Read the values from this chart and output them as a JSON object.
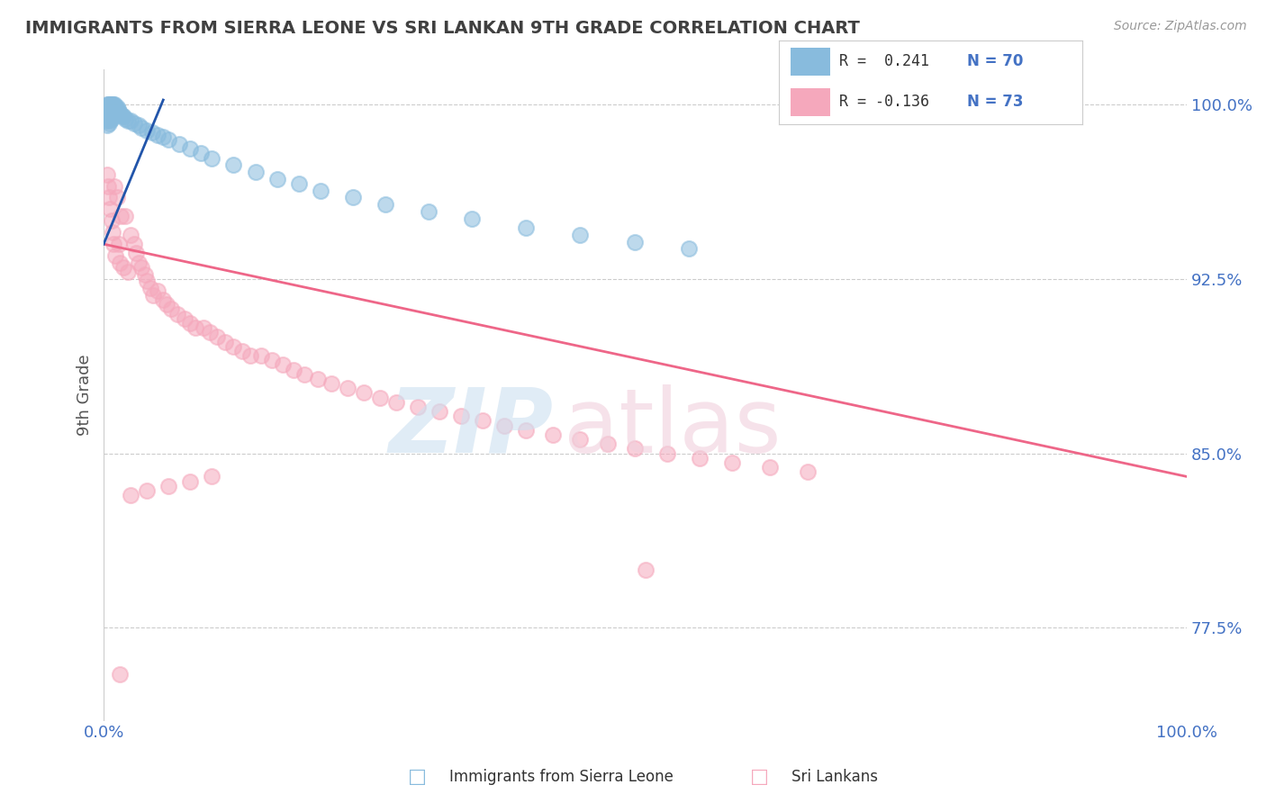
{
  "title": "IMMIGRANTS FROM SIERRA LEONE VS SRI LANKAN 9TH GRADE CORRELATION CHART",
  "source": "Source: ZipAtlas.com",
  "ylabel": "9th Grade",
  "xlim": [
    0.0,
    1.0
  ],
  "ylim": [
    0.735,
    1.015
  ],
  "yticks": [
    0.775,
    0.85,
    0.925,
    1.0
  ],
  "ytick_labels": [
    "77.5%",
    "85.0%",
    "92.5%",
    "100.0%"
  ],
  "blue_color": "#88bbdd",
  "pink_color": "#f5a8bc",
  "blue_line_color": "#2255aa",
  "pink_line_color": "#ee6688",
  "bg_color": "#ffffff",
  "grid_color": "#cccccc",
  "title_color": "#404040",
  "axis_label_color": "#555555",
  "tick_color_right": "#4472c4",
  "legend_blue_r": "R =  0.241",
  "legend_blue_n": "N = 70",
  "legend_pink_r": "R = -0.136",
  "legend_pink_n": "N = 73",
  "blue_scatter_x": [
    0.001,
    0.001,
    0.002,
    0.002,
    0.002,
    0.003,
    0.003,
    0.003,
    0.003,
    0.004,
    0.004,
    0.004,
    0.005,
    0.005,
    0.005,
    0.005,
    0.005,
    0.006,
    0.006,
    0.006,
    0.006,
    0.007,
    0.007,
    0.007,
    0.008,
    0.008,
    0.008,
    0.009,
    0.009,
    0.01,
    0.01,
    0.01,
    0.011,
    0.011,
    0.012,
    0.012,
    0.013,
    0.014,
    0.015,
    0.016,
    0.017,
    0.018,
    0.02,
    0.022,
    0.025,
    0.028,
    0.032,
    0.035,
    0.04,
    0.045,
    0.05,
    0.055,
    0.06,
    0.07,
    0.08,
    0.09,
    0.1,
    0.12,
    0.14,
    0.16,
    0.18,
    0.2,
    0.23,
    0.26,
    0.3,
    0.34,
    0.39,
    0.44,
    0.49,
    0.54
  ],
  "blue_scatter_y": [
    0.998,
    0.995,
    0.999,
    0.996,
    0.993,
    1.0,
    0.997,
    0.994,
    0.991,
    1.0,
    0.998,
    0.994,
    1.0,
    0.999,
    0.997,
    0.995,
    0.992,
    1.0,
    0.998,
    0.996,
    0.993,
    1.0,
    0.997,
    0.994,
    1.0,
    0.998,
    0.995,
    1.0,
    0.997,
    1.0,
    0.998,
    0.996,
    0.999,
    0.997,
    0.999,
    0.996,
    0.998,
    0.997,
    0.996,
    0.996,
    0.995,
    0.995,
    0.994,
    0.993,
    0.993,
    0.992,
    0.991,
    0.99,
    0.989,
    0.988,
    0.987,
    0.986,
    0.985,
    0.983,
    0.981,
    0.979,
    0.977,
    0.974,
    0.971,
    0.968,
    0.966,
    0.963,
    0.96,
    0.957,
    0.954,
    0.951,
    0.947,
    0.944,
    0.941,
    0.938
  ],
  "pink_scatter_x": [
    0.003,
    0.004,
    0.005,
    0.006,
    0.007,
    0.008,
    0.009,
    0.01,
    0.011,
    0.012,
    0.014,
    0.015,
    0.016,
    0.018,
    0.02,
    0.022,
    0.025,
    0.028,
    0.03,
    0.032,
    0.035,
    0.038,
    0.04,
    0.043,
    0.046,
    0.05,
    0.055,
    0.058,
    0.062,
    0.068,
    0.075,
    0.08,
    0.085,
    0.092,
    0.098,
    0.105,
    0.112,
    0.12,
    0.128,
    0.135,
    0.145,
    0.155,
    0.165,
    0.175,
    0.185,
    0.198,
    0.21,
    0.225,
    0.24,
    0.255,
    0.27,
    0.29,
    0.31,
    0.33,
    0.35,
    0.37,
    0.39,
    0.415,
    0.44,
    0.465,
    0.49,
    0.52,
    0.55,
    0.58,
    0.615,
    0.65,
    0.5,
    0.1,
    0.08,
    0.06,
    0.04,
    0.025,
    0.015
  ],
  "pink_scatter_y": [
    0.97,
    0.965,
    0.96,
    0.955,
    0.95,
    0.945,
    0.94,
    0.965,
    0.935,
    0.96,
    0.94,
    0.932,
    0.952,
    0.93,
    0.952,
    0.928,
    0.944,
    0.94,
    0.936,
    0.932,
    0.93,
    0.927,
    0.924,
    0.921,
    0.918,
    0.92,
    0.916,
    0.914,
    0.912,
    0.91,
    0.908,
    0.906,
    0.904,
    0.904,
    0.902,
    0.9,
    0.898,
    0.896,
    0.894,
    0.892,
    0.892,
    0.89,
    0.888,
    0.886,
    0.884,
    0.882,
    0.88,
    0.878,
    0.876,
    0.874,
    0.872,
    0.87,
    0.868,
    0.866,
    0.864,
    0.862,
    0.86,
    0.858,
    0.856,
    0.854,
    0.852,
    0.85,
    0.848,
    0.846,
    0.844,
    0.842,
    0.8,
    0.84,
    0.838,
    0.836,
    0.834,
    0.832,
    0.755
  ]
}
